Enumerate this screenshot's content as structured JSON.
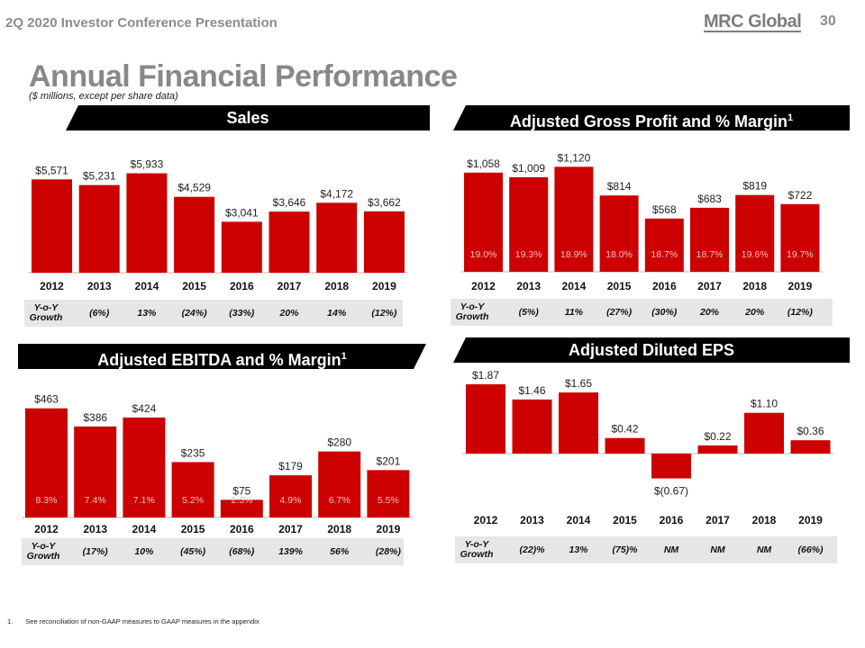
{
  "header": {
    "presentation_title": "2Q 2020 Investor Conference Presentation",
    "logo_text": "MRC Global",
    "page_number": "30"
  },
  "main": {
    "title": "Annual Financial Performance",
    "subtitle": "($ millions, except per share data)"
  },
  "colors": {
    "bar": "#cc0000",
    "banner": "#000000",
    "growth_bg": "#e6e6e6",
    "axis": "#bbbbbb",
    "title_gray": "#888888"
  },
  "footnote": {
    "number": "1.",
    "text": "See reconciliation of non-GAAP measures to GAAP measures in the appendix"
  },
  "growth_label": "Y-o-Y Growth",
  "chart_data": [
    {
      "id": "sales",
      "type": "bar",
      "title": "Sales",
      "title_sup": "",
      "categories": [
        "2012",
        "2013",
        "2014",
        "2015",
        "2016",
        "2017",
        "2018",
        "2019"
      ],
      "values": [
        5571,
        5231,
        5933,
        4529,
        3041,
        3646,
        4172,
        3662
      ],
      "value_labels": [
        "$5,571",
        "$5,231",
        "$5,933",
        "$4,529",
        "$3,041",
        "$3,646",
        "$4,172",
        "$3,662"
      ],
      "inner_labels": [],
      "growth": [
        "(6%)",
        "13%",
        "(24%)",
        "(33%)",
        "20%",
        "14%",
        "(12%)"
      ],
      "ylim": [
        0,
        6500
      ]
    },
    {
      "id": "gross-profit",
      "type": "bar",
      "title": "Adjusted Gross Profit and % Margin",
      "title_sup": "1",
      "categories": [
        "2012",
        "2013",
        "2014",
        "2015",
        "2016",
        "2017",
        "2018",
        "2019"
      ],
      "values": [
        1058,
        1009,
        1120,
        814,
        568,
        683,
        819,
        722
      ],
      "value_labels": [
        "$1,058",
        "$1,009",
        "$1,120",
        "$814",
        "$568",
        "$683",
        "$819",
        "$722"
      ],
      "inner_labels": [
        "19.0%",
        "19.3%",
        "18.9%",
        "18.0%",
        "18.7%",
        "18.7%",
        "19.6%",
        "19.7%"
      ],
      "growth": [
        "(5%)",
        "11%",
        "(27%)",
        "(30%)",
        "20%",
        "20%",
        "(12%)"
      ],
      "ylim": [
        0,
        1200
      ]
    },
    {
      "id": "ebitda",
      "type": "bar",
      "title": "Adjusted EBITDA and % Margin",
      "title_sup": "1",
      "categories": [
        "2012",
        "2013",
        "2014",
        "2015",
        "2016",
        "2017",
        "2018",
        "2019"
      ],
      "values": [
        463,
        386,
        424,
        235,
        75,
        179,
        280,
        201
      ],
      "value_labels": [
        "$463",
        "$386",
        "$424",
        "$235",
        "$75",
        "$179",
        "$280",
        "$201"
      ],
      "inner_labels": [
        "8.3%",
        "7.4%",
        "7.1%",
        "5.2%",
        "2.5%",
        "4.9%",
        "6.7%",
        "5.5%"
      ],
      "growth": [
        "(17%)",
        "10%",
        "(45%)",
        "(68%)",
        "139%",
        "56%",
        "(28%)"
      ],
      "ylim": [
        0,
        500
      ]
    },
    {
      "id": "eps",
      "type": "bar",
      "title": "Adjusted Diluted EPS",
      "title_sup": "",
      "categories": [
        "2012",
        "2013",
        "2014",
        "2015",
        "2016",
        "2017",
        "2018",
        "2019"
      ],
      "values": [
        1.87,
        1.46,
        1.65,
        0.42,
        -0.67,
        0.22,
        1.1,
        0.36
      ],
      "value_labels": [
        "$1.87",
        "$1.46",
        "$1.65",
        "$0.42",
        "$(0.67)",
        "$0.22",
        "$1.10",
        "$0.36"
      ],
      "inner_labels": [],
      "growth": [
        "(22)%",
        "13%",
        "(75)%",
        "NM",
        "NM",
        "NM",
        "(66%)"
      ],
      "ylim": [
        -0.67,
        1.87
      ]
    }
  ]
}
